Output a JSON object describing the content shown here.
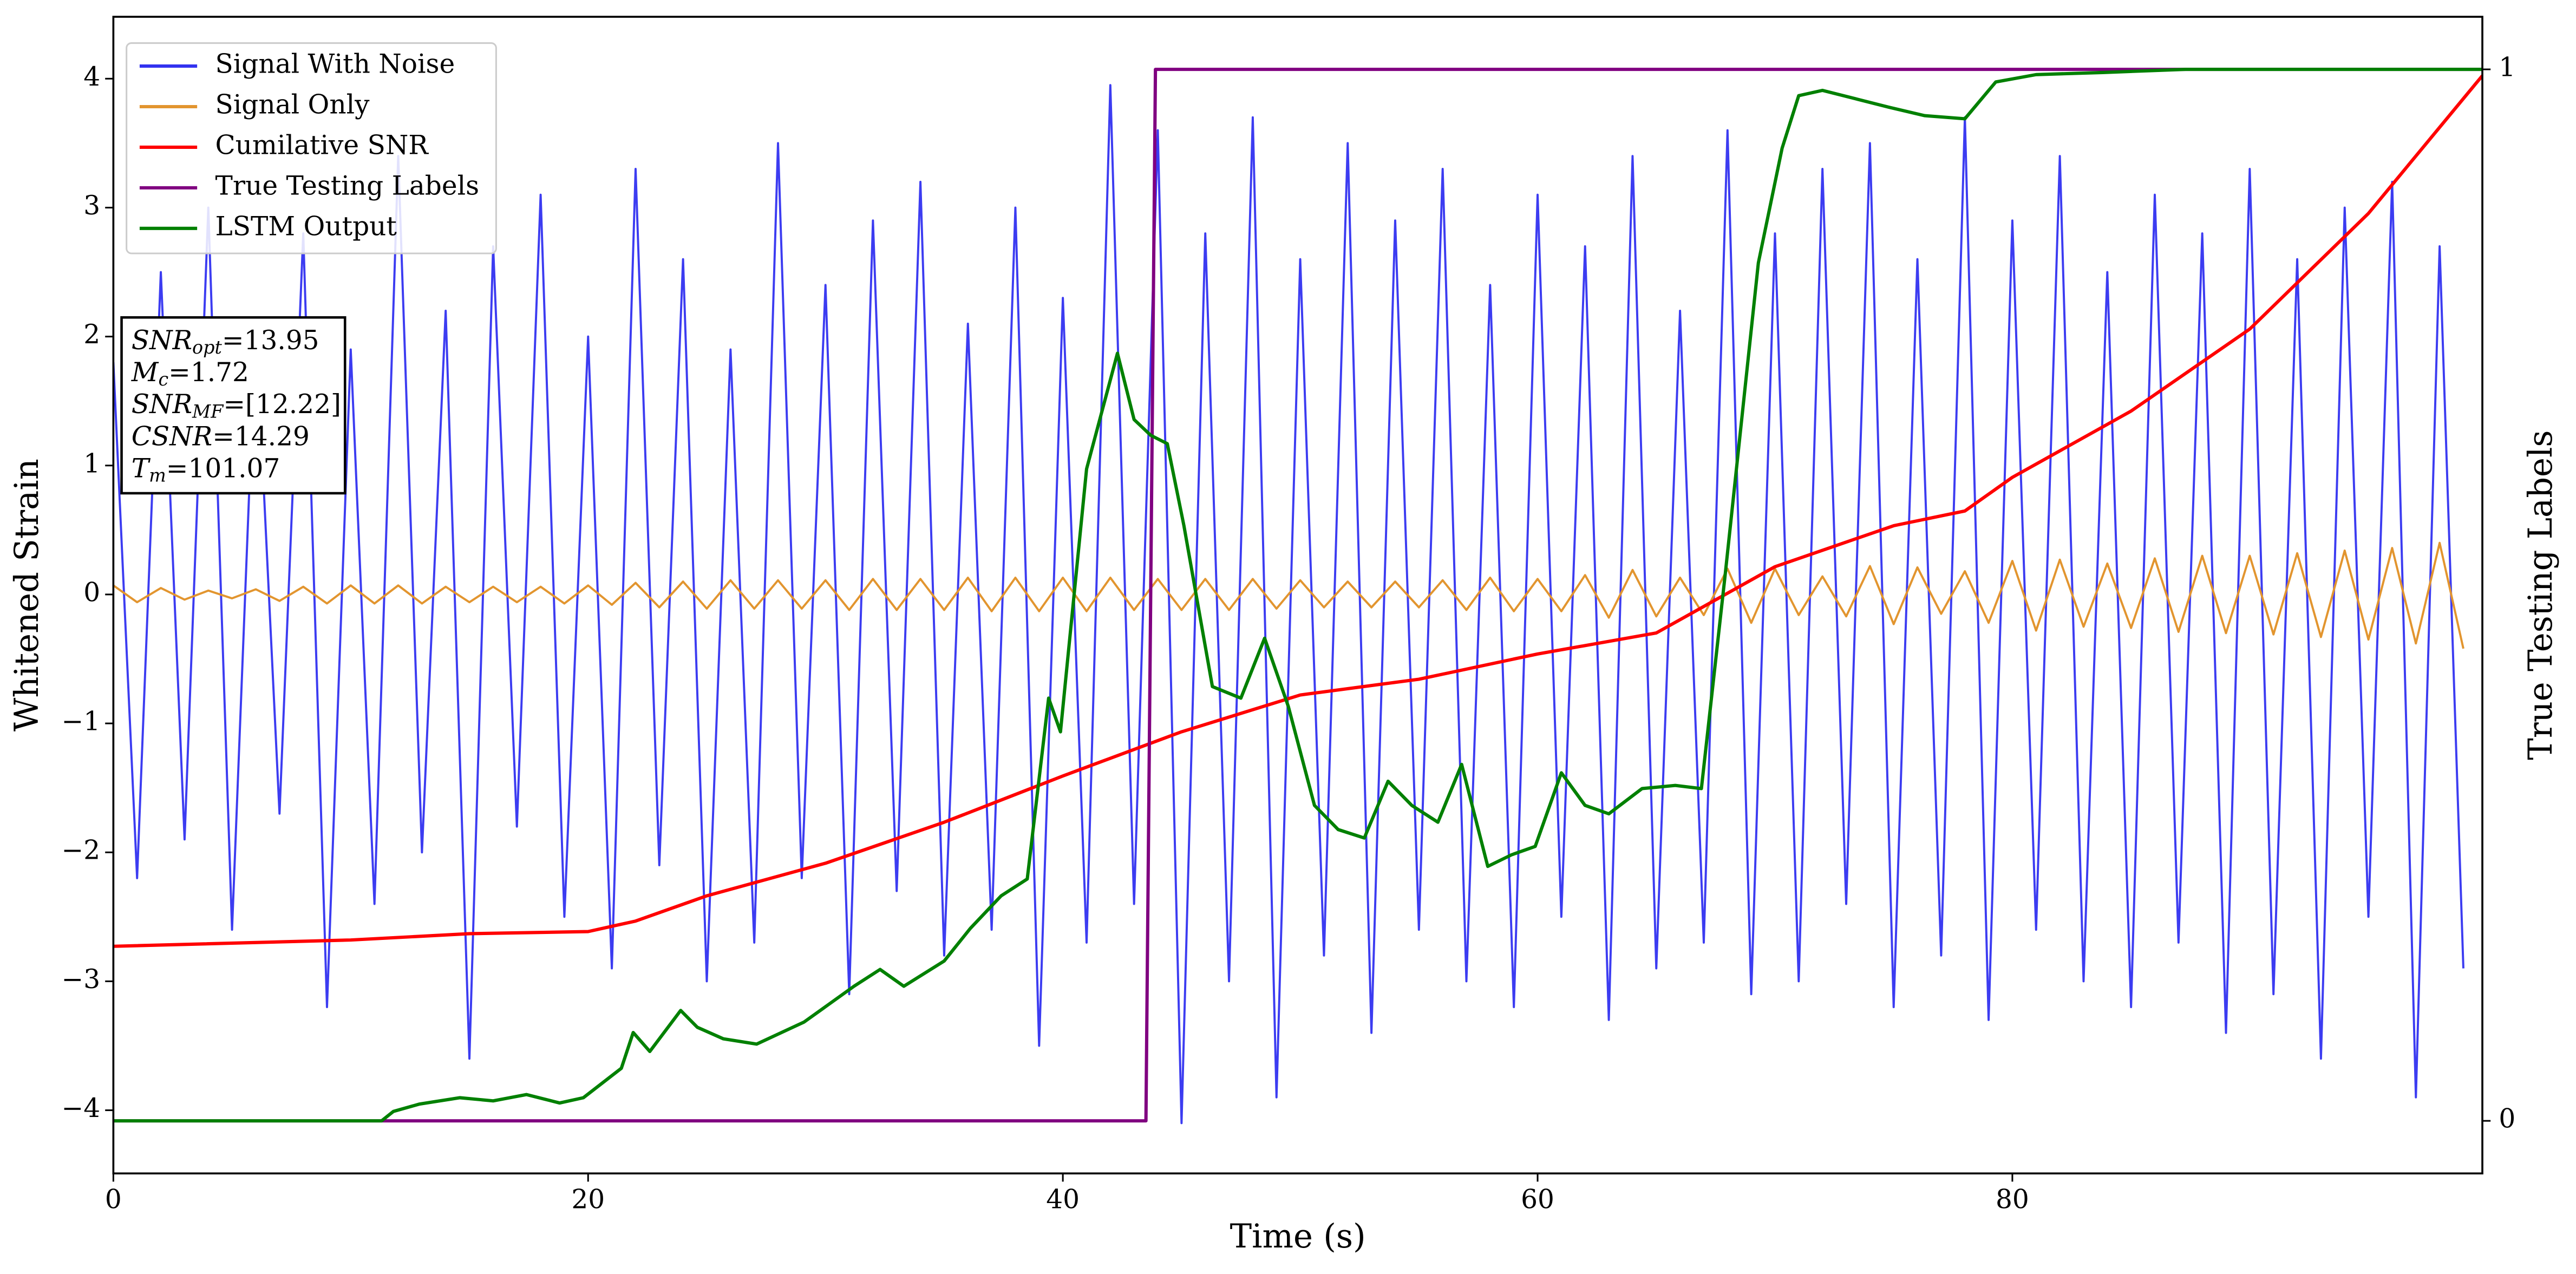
{
  "chart_data": {
    "type": "line",
    "xlabel": "Time (s)",
    "ylabel": "Whitened Strain",
    "y2label": "True Testing Labels",
    "xlim": [
      0,
      99.8
    ],
    "ylim": [
      -4.49,
      4.48
    ],
    "y2lim": [
      -0.05,
      1.05
    ],
    "xticks": [
      0,
      20,
      40,
      60,
      80
    ],
    "yticks": [
      {
        "value": -4,
        "label": "−4"
      },
      {
        "value": -3,
        "label": "−3"
      },
      {
        "value": -2,
        "label": "−2"
      },
      {
        "value": -1,
        "label": "−1"
      },
      0,
      1,
      2,
      3,
      4
    ],
    "y2ticks": [
      0,
      1
    ],
    "legend": "upper left",
    "series": [
      {
        "name": "Signal With Noise",
        "color": "#3232f0",
        "x": [
          0,
          1,
          2,
          3,
          4,
          5,
          6,
          7,
          8,
          9,
          10,
          11,
          12,
          13,
          14,
          15,
          16,
          17,
          18,
          19,
          20,
          21,
          22,
          23,
          24,
          25,
          26,
          27,
          28,
          29,
          30,
          31,
          32,
          33,
          34,
          35,
          36,
          37,
          38,
          39,
          40,
          41,
          42,
          43,
          44,
          45,
          46,
          47,
          48,
          49,
          50,
          51,
          52,
          53,
          54,
          55,
          56,
          57,
          58,
          59,
          60,
          61,
          62,
          63,
          64,
          65,
          66,
          67,
          68,
          69,
          70,
          71,
          72,
          73,
          74,
          75,
          76,
          77,
          78,
          79,
          80,
          81,
          82,
          83,
          84,
          85,
          86,
          87,
          88,
          89,
          90,
          91,
          92,
          93,
          94,
          95,
          96,
          97,
          98,
          99
        ],
        "values": [
          1.8,
          -2.2,
          2.5,
          -1.9,
          3.0,
          -2.6,
          2.1,
          -1.7,
          2.8,
          -3.2,
          1.9,
          -2.4,
          3.4,
          -2.0,
          2.2,
          -3.6,
          2.7,
          -1.8,
          3.1,
          -2.5,
          2.0,
          -2.9,
          3.3,
          -2.1,
          2.6,
          -3.0,
          1.9,
          -2.7,
          3.5,
          -2.2,
          2.4,
          -3.1,
          2.9,
          -2.3,
          3.2,
          -2.8,
          2.1,
          -2.6,
          3.0,
          -3.5,
          2.3,
          -2.7,
          3.95,
          -2.4,
          3.6,
          -4.1,
          2.8,
          -3.0,
          3.7,
          -3.9,
          2.6,
          -2.8,
          3.5,
          -3.4,
          2.9,
          -2.6,
          3.3,
          -3.0,
          2.4,
          -3.2,
          3.1,
          -2.5,
          2.7,
          -3.3,
          3.4,
          -2.9,
          2.2,
          -2.7,
          3.6,
          -3.1,
          2.8,
          -3.0,
          3.3,
          -2.4,
          3.5,
          -3.2,
          2.6,
          -2.8,
          3.7,
          -3.3,
          2.9,
          -2.6,
          3.4,
          -3.0,
          2.5,
          -3.2,
          3.1,
          -2.7,
          2.8,
          -3.4,
          3.3,
          -3.1,
          2.6,
          -3.6,
          3.0,
          -2.5,
          3.2,
          -3.9,
          2.7,
          -2.9
        ]
      },
      {
        "name": "Signal Only",
        "color": "#e2952f",
        "x": [
          0,
          1,
          2,
          3,
          4,
          5,
          6,
          7,
          8,
          9,
          10,
          11,
          12,
          13,
          14,
          15,
          16,
          17,
          18,
          19,
          20,
          21,
          22,
          23,
          24,
          25,
          26,
          27,
          28,
          29,
          30,
          31,
          32,
          33,
          34,
          35,
          36,
          37,
          38,
          39,
          40,
          41,
          42,
          43,
          44,
          45,
          46,
          47,
          48,
          49,
          50,
          51,
          52,
          53,
          54,
          55,
          56,
          57,
          58,
          59,
          60,
          61,
          62,
          63,
          64,
          65,
          66,
          67,
          68,
          69,
          70,
          71,
          72,
          73,
          74,
          75,
          76,
          77,
          78,
          79,
          80,
          81,
          82,
          83,
          84,
          85,
          86,
          87,
          88,
          89,
          90,
          91,
          92,
          93,
          94,
          95,
          96,
          97,
          98,
          99
        ],
        "values": [
          0.07,
          -0.06,
          0.05,
          -0.04,
          0.03,
          -0.03,
          0.04,
          -0.05,
          0.06,
          -0.07,
          0.07,
          -0.07,
          0.07,
          -0.07,
          0.06,
          -0.06,
          0.06,
          -0.06,
          0.06,
          -0.07,
          0.07,
          -0.08,
          0.09,
          -0.1,
          0.1,
          -0.11,
          0.11,
          -0.11,
          0.11,
          -0.11,
          0.11,
          -0.12,
          0.12,
          -0.12,
          0.12,
          -0.12,
          0.13,
          -0.13,
          0.13,
          -0.13,
          0.13,
          -0.13,
          0.13,
          -0.12,
          0.12,
          -0.12,
          0.12,
          -0.12,
          0.12,
          -0.11,
          0.11,
          -0.1,
          0.1,
          -0.1,
          0.1,
          -0.1,
          0.11,
          -0.12,
          0.13,
          -0.13,
          0.12,
          -0.13,
          0.15,
          -0.18,
          0.19,
          -0.17,
          0.13,
          -0.16,
          0.2,
          -0.22,
          0.2,
          -0.16,
          0.14,
          -0.17,
          0.22,
          -0.23,
          0.21,
          -0.15,
          0.18,
          -0.22,
          0.26,
          -0.28,
          0.27,
          -0.25,
          0.24,
          -0.26,
          0.28,
          -0.29,
          0.3,
          -0.3,
          0.3,
          -0.31,
          0.32,
          -0.33,
          0.34,
          -0.35,
          0.36,
          -0.38,
          0.4,
          -0.42
        ]
      },
      {
        "name": "Cumilative SNR",
        "color": "#ff0000",
        "axis": "y2",
        "x": [
          0,
          10,
          15,
          20,
          22,
          25,
          30,
          35,
          40,
          45,
          50,
          55,
          60,
          65,
          70,
          75,
          78,
          80,
          85,
          90,
          95,
          99.8
        ],
        "values": [
          0.166,
          0.172,
          0.178,
          0.18,
          0.19,
          0.214,
          0.245,
          0.284,
          0.328,
          0.37,
          0.405,
          0.42,
          0.444,
          0.464,
          0.527,
          0.566,
          0.58,
          0.612,
          0.675,
          0.753,
          0.863,
          0.994
        ]
      },
      {
        "name": "True Testing Labels",
        "color": "#800080",
        "axis": "y2",
        "x": [
          0,
          43.5,
          43.9,
          99.8
        ],
        "values": [
          0,
          0,
          1,
          1
        ]
      },
      {
        "name": "LSTM Output",
        "color": "#008000",
        "axis": "y2",
        "x": [
          0,
          11.3,
          11.8,
          12.9,
          14.6,
          16.0,
          17.4,
          18.8,
          19.8,
          21.4,
          21.9,
          22.6,
          23.9,
          24.6,
          25.7,
          27.1,
          29.1,
          31.2,
          32.3,
          33.3,
          35.0,
          36.1,
          37.4,
          38.5,
          39.4,
          39.9,
          41.0,
          42.3,
          43.0,
          43.7,
          44.4,
          45.1,
          46.3,
          47.5,
          48.5,
          49.5,
          50.6,
          51.6,
          52.7,
          53.7,
          54.7,
          55.8,
          56.8,
          57.9,
          58.9,
          59.9,
          61.0,
          62.0,
          63.0,
          64.4,
          65.8,
          66.9,
          67.9,
          69.3,
          70.3,
          71.0,
          72.0,
          73.4,
          74.8,
          76.3,
          78.0,
          79.3,
          81.0,
          83.8,
          87.3,
          99.8
        ],
        "values": [
          0,
          0,
          0.009,
          0.016,
          0.022,
          0.019,
          0.025,
          0.017,
          0.022,
          0.05,
          0.084,
          0.066,
          0.105,
          0.089,
          0.078,
          0.073,
          0.094,
          0.128,
          0.144,
          0.128,
          0.152,
          0.183,
          0.214,
          0.23,
          0.402,
          0.37,
          0.62,
          0.73,
          0.667,
          0.652,
          0.644,
          0.566,
          0.413,
          0.402,
          0.459,
          0.394,
          0.3,
          0.277,
          0.269,
          0.323,
          0.3,
          0.284,
          0.339,
          0.242,
          0.253,
          0.261,
          0.331,
          0.3,
          0.292,
          0.316,
          0.319,
          0.316,
          0.519,
          0.816,
          0.925,
          0.975,
          0.98,
          0.972,
          0.964,
          0.956,
          0.953,
          0.988,
          0.995,
          0.997,
          1.0,
          1.0
        ]
      }
    ],
    "annotations": [
      {
        "name": "SNR",
        "sub": "opt",
        "value": "=13.95"
      },
      {
        "name": "M",
        "sub": "c",
        "value": "=1.72"
      },
      {
        "name": "SNR",
        "sub": "MF",
        "value": "=[12.22]"
      },
      {
        "name": "CSNR",
        "value": "=14.29"
      },
      {
        "name": "T",
        "sub": "m",
        "value": "=101.07"
      }
    ]
  }
}
